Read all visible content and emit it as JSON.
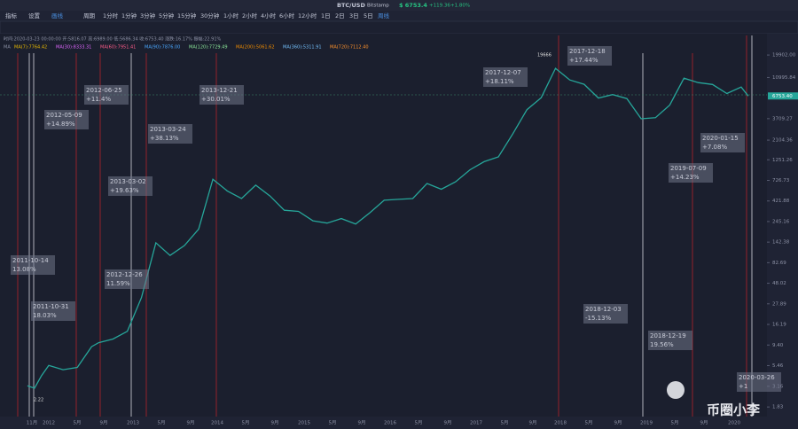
{
  "header": {
    "symbol": "BTC/USD",
    "exchange": "Bitstamp",
    "price": "$ 6753.4",
    "change": "+119.36",
    "change_pct": "+1.80%"
  },
  "toolbar": {
    "buttons": [
      "指标",
      "设置",
      "画线"
    ],
    "period_label": "周期",
    "periods": [
      "1分时",
      "1分钟",
      "3分钟",
      "5分钟",
      "15分钟",
      "30分钟",
      "1小时",
      "2小时",
      "4小时",
      "6小时",
      "12小时",
      "1日",
      "2日",
      "3日",
      "5日",
      "周线"
    ]
  },
  "info": {
    "ohlc": "时间:2020-03-23 00:00:00  开:5816.07  高:6989.00  低:5686.34  收:6753.40  涨跌:16.17%  振幅:22.91%",
    "ma_label": "MA",
    "ma": [
      "MA(7):7764.42",
      "MA(30):8333.31",
      "MA(60):7951.41",
      "MA(90):7876.00",
      "MA(120):7729.49",
      "MA(200):5061.62",
      "MA(360):5311.91",
      "MA(720):7112.40"
    ]
  },
  "chart": {
    "type": "line",
    "y_scale": "log",
    "ylim": [
      1.42,
      20900
    ],
    "color": "#26a69a",
    "yticks": [
      {
        "value": 19902,
        "label": "19902.00"
      },
      {
        "value": 10995.84,
        "label": "10995.84"
      },
      {
        "value": 3709.27,
        "label": "3709.27"
      },
      {
        "value": 2104.36,
        "label": "2104.36"
      },
      {
        "value": 1251.26,
        "label": "1251.26"
      },
      {
        "value": 726.73,
        "label": "726.73"
      },
      {
        "value": 421.88,
        "label": "421.88"
      },
      {
        "value": 245.16,
        "label": "245.16"
      },
      {
        "value": 142.38,
        "label": "142.38"
      },
      {
        "value": 82.69,
        "label": "82.69"
      },
      {
        "value": 48.02,
        "label": "48.02"
      },
      {
        "value": 27.89,
        "label": "27.89"
      },
      {
        "value": 16.19,
        "label": "16.19"
      },
      {
        "value": 9.4,
        "label": "9.40"
      },
      {
        "value": 5.46,
        "label": "5.46"
      },
      {
        "value": 3.16,
        "label": "3.16"
      },
      {
        "value": 1.83,
        "label": "1.83"
      }
    ],
    "last_price": {
      "value": 6753.4,
      "label": "6753.40"
    },
    "high_label": "19666",
    "low_label": "2.22",
    "xticks": [
      "11月",
      "2012",
      "5月",
      "9月",
      "2013",
      "5月",
      "9月",
      "2014",
      "5月",
      "9月",
      "2015",
      "5月",
      "9月",
      "2016",
      "5月",
      "9月",
      "2017",
      "5月",
      "9月",
      "2018",
      "5月",
      "9月",
      "2019",
      "5月",
      "9月",
      "2020"
    ],
    "x": [
      "2011-10",
      "2011-11",
      "2011-12",
      "2012-01",
      "2012-03",
      "2012-05",
      "2012-07",
      "2012-08",
      "2012-10",
      "2012-12",
      "2013-02",
      "2013-04",
      "2013-06",
      "2013-08",
      "2013-10",
      "2013-12",
      "2014-02",
      "2014-04",
      "2014-06",
      "2014-08",
      "2014-10",
      "2014-12",
      "2015-02",
      "2015-04",
      "2015-06",
      "2015-08",
      "2015-10",
      "2015-12",
      "2016-02",
      "2016-04",
      "2016-06",
      "2016-08",
      "2016-10",
      "2016-12",
      "2017-02",
      "2017-04",
      "2017-06",
      "2017-08",
      "2017-10",
      "2017-12",
      "2018-02",
      "2018-04",
      "2018-06",
      "2018-08",
      "2018-10",
      "2018-12",
      "2019-02",
      "2019-04",
      "2019-06",
      "2019-08",
      "2019-10",
      "2019-12",
      "2020-02",
      "2020-03"
    ],
    "values": [
      3.2,
      3,
      4.2,
      5.5,
      4.9,
      5.2,
      9,
      10,
      11,
      13.5,
      33,
      140,
      100,
      130,
      200,
      750,
      550,
      450,
      640,
      480,
      330,
      320,
      250,
      235,
      265,
      230,
      310,
      430,
      440,
      450,
      670,
      575,
      700,
      960,
      1190,
      1350,
      2480,
      4700,
      6450,
      14000,
      10300,
      9200,
      6400,
      7000,
      6300,
      3700,
      3800,
      5300,
      10800,
      9600,
      9150,
      7200,
      8550,
      6753.4
    ],
    "annotations": [
      {
        "date": "2011-10-14",
        "change": "13.08%"
      },
      {
        "date": "2011-10-31",
        "change": "18.03%"
      },
      {
        "date": "2012-05-09",
        "change": "+14.89%"
      },
      {
        "date": "2012-06-25",
        "change": "+11.4%"
      },
      {
        "date": "2012-12-26",
        "change": "11.59%"
      },
      {
        "date": "2013-03-02",
        "change": "+19.63%"
      },
      {
        "date": "2013-03-24",
        "change": "+38.13%"
      },
      {
        "date": "2013-12-21",
        "change": "+30.01%"
      },
      {
        "date": "2017-12-07",
        "change": "+18.11%"
      },
      {
        "date": "2017-12-18",
        "change": "+17.44%"
      },
      {
        "date": "2018-12-03",
        "change": "-15.13%"
      },
      {
        "date": "2018-12-19",
        "change": "19.56%"
      },
      {
        "date": "2019-07-09",
        "change": "+14.23%"
      },
      {
        "date": "2020-01-15",
        "change": "+7.08%"
      },
      {
        "date": "2020-03-26",
        "change": "+1"
      }
    ]
  },
  "watermark": "币圈小李"
}
